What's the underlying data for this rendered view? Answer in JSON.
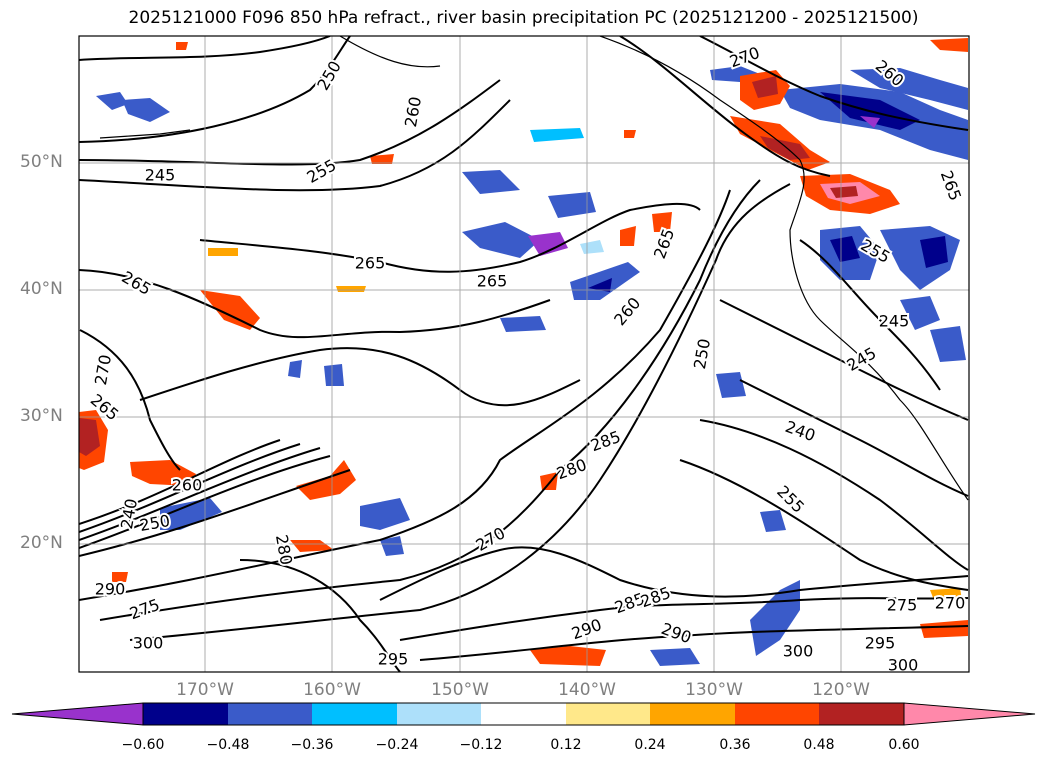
{
  "title": "2025121000 F096 850 hPa refract., river basin precipitation PC (2025121200 - 2025121500)",
  "lat_labels": [
    "50°N",
    "40°N",
    "30°N",
    "20°N"
  ],
  "lon_labels": [
    "170°W",
    "160°W",
    "150°W",
    "140°W",
    "130°W",
    "120°W"
  ],
  "contour_labels": [
    "250",
    "260",
    "245",
    "255",
    "270",
    "260",
    "265",
    "265",
    "265",
    "265",
    "260",
    "265",
    "270",
    "250",
    "255",
    "245",
    "245",
    "265",
    "240",
    "285",
    "280",
    "260",
    "250",
    "240",
    "280",
    "270",
    "285",
    "290",
    "275",
    "255",
    "290",
    "300",
    "295",
    "285",
    "290",
    "300",
    "295",
    "300",
    "270",
    "275"
  ],
  "colorbar": {
    "ticks": [
      "−0.60",
      "−0.48",
      "−0.36",
      "−0.24",
      "−0.12",
      "0.12",
      "0.24",
      "0.36",
      "0.48",
      "0.60"
    ],
    "colors": [
      "#9932CC",
      "#00008B",
      "#3A5BC9",
      "#00BFFF",
      "#ADE0FA",
      "#FFFFFF",
      "#FFE88A",
      "#FFA500",
      "#FF4500",
      "#B22222",
      "#FF88AA"
    ]
  }
}
